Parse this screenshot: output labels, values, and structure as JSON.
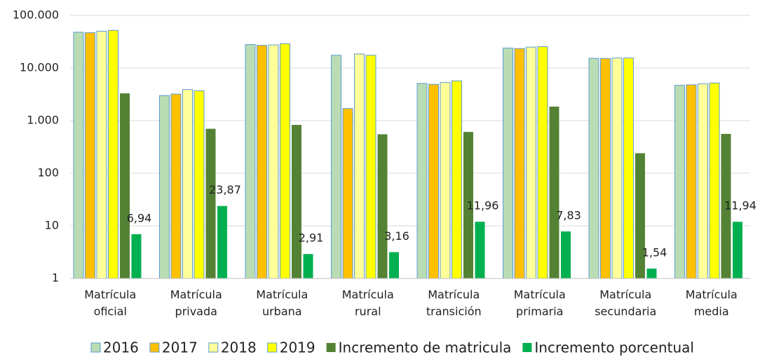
{
  "chart_data": {
    "type": "bar",
    "log_scale": true,
    "grid": true,
    "legend": "bottom",
    "categories": [
      [
        "Matrícula",
        "oficial"
      ],
      [
        "Matrícula",
        "privada"
      ],
      [
        "Matrícula",
        "urbana"
      ],
      [
        "Matrícula",
        "rural"
      ],
      [
        "Matrícula",
        "transición"
      ],
      [
        "Matrícula",
        "primaria"
      ],
      [
        "Matrícula",
        "secundaria"
      ],
      [
        "Matrícula",
        "media"
      ]
    ],
    "series": [
      {
        "name": "2016",
        "color": "#b9dcb3",
        "values": [
          48000,
          3000,
          28000,
          17500,
          5100,
          24000,
          15300,
          4700
        ]
      },
      {
        "name": "2017",
        "color": "#ffc000",
        "values": [
          47000,
          3200,
          27000,
          1700,
          4900,
          23500,
          15200,
          4800
        ]
      },
      {
        "name": "2018",
        "color": "#ffff99",
        "values": [
          50000,
          3900,
          27500,
          18500,
          5300,
          25000,
          15500,
          5000
        ]
      },
      {
        "name": "2019",
        "color": "#ffff00",
        "values": [
          52000,
          3700,
          29000,
          17500,
          5700,
          25500,
          15500,
          5200
        ]
      },
      {
        "name": "Incremento de matricula",
        "color": "#548235",
        "values": [
          3300,
          700,
          830,
          550,
          610,
          1850,
          240,
          560
        ]
      },
      {
        "name": "Incremento porcentual",
        "color": "#00b050",
        "values": [
          6.94,
          23.87,
          2.91,
          3.16,
          11.96,
          7.83,
          1.54,
          11.94
        ],
        "value_labels": [
          "6,94",
          "23,87",
          "2,91",
          "3,16",
          "11,96",
          "7,83",
          "1,54",
          "11,94"
        ]
      }
    ],
    "ylim": [
      1,
      100000
    ],
    "yticks": [
      1,
      10,
      100,
      {
        "value": 1000,
        "label": "1.000"
      },
      {
        "value": 10000,
        "label": "10.000"
      },
      {
        "value": 100000,
        "label": "100.000"
      }
    ]
  }
}
